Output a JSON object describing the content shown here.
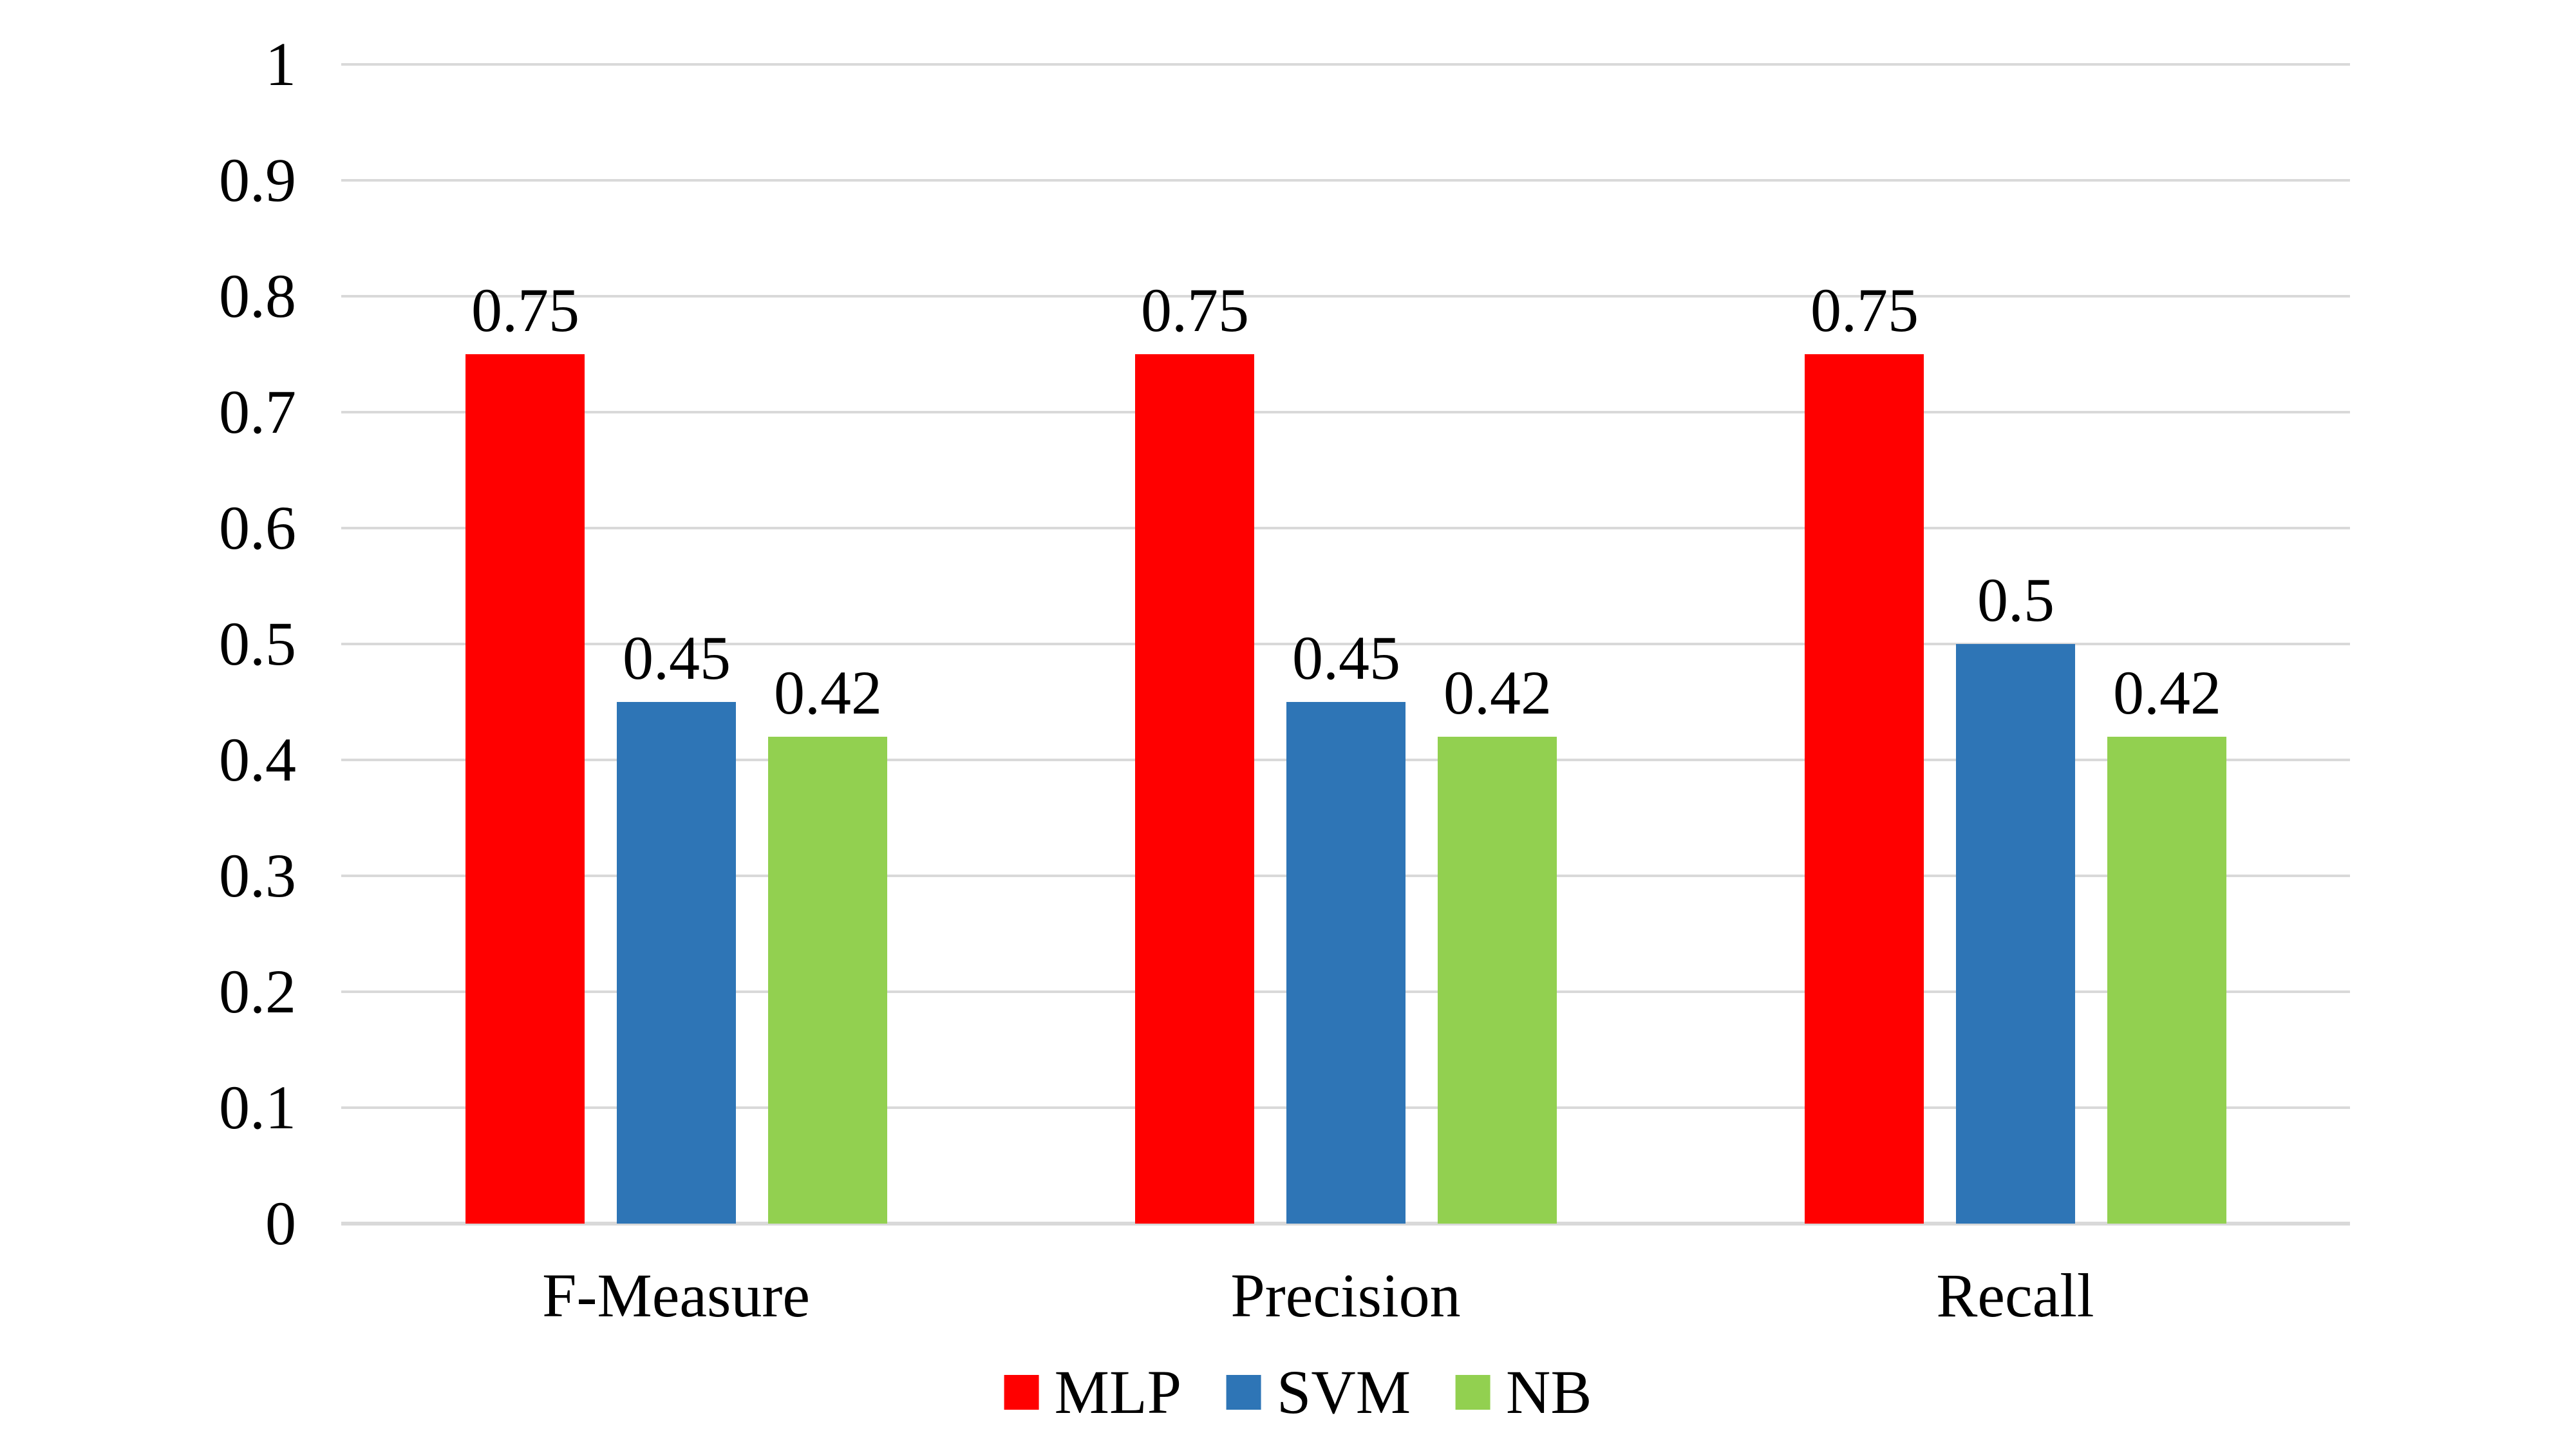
{
  "chart_data": {
    "type": "bar",
    "title": "",
    "categories": [
      "F-Measure",
      "Precision",
      "Recall"
    ],
    "series": [
      {
        "name": "MLP",
        "color": "#FF0000",
        "values": [
          0.75,
          0.75,
          0.75
        ]
      },
      {
        "name": "SVM",
        "color": "#2E75B6",
        "values": [
          0.45,
          0.45,
          0.5
        ]
      },
      {
        "name": "NB",
        "color": "#92D050",
        "values": [
          0.42,
          0.42,
          0.42
        ]
      }
    ],
    "data_labels_shown": true,
    "data_label_texts": [
      [
        "0.75",
        "0.45",
        "0.42"
      ],
      [
        "0.75",
        "0.45",
        "0.42"
      ],
      [
        "0.75",
        "0.5",
        "0.42"
      ]
    ],
    "ylim": [
      0,
      1
    ],
    "ytick_values": [
      0,
      0.1,
      0.2,
      0.3,
      0.4,
      0.5,
      0.6,
      0.7,
      0.8,
      0.9,
      1
    ],
    "ytick_labels": [
      "0",
      "0.1",
      "0.2",
      "0.3",
      "0.4",
      "0.5",
      "0.6",
      "0.7",
      "0.8",
      "0.9",
      "1"
    ],
    "xlabel": "",
    "ylabel": "",
    "grid": "horizontal-only",
    "legend_position": "bottom-center",
    "legend_labels": [
      "MLP",
      "SVM",
      "NB"
    ],
    "colors": {
      "background": "#FFFFFF",
      "gridline": "#D9D9D9",
      "axis_line": "#D9D9D9",
      "text": "#000000"
    }
  }
}
